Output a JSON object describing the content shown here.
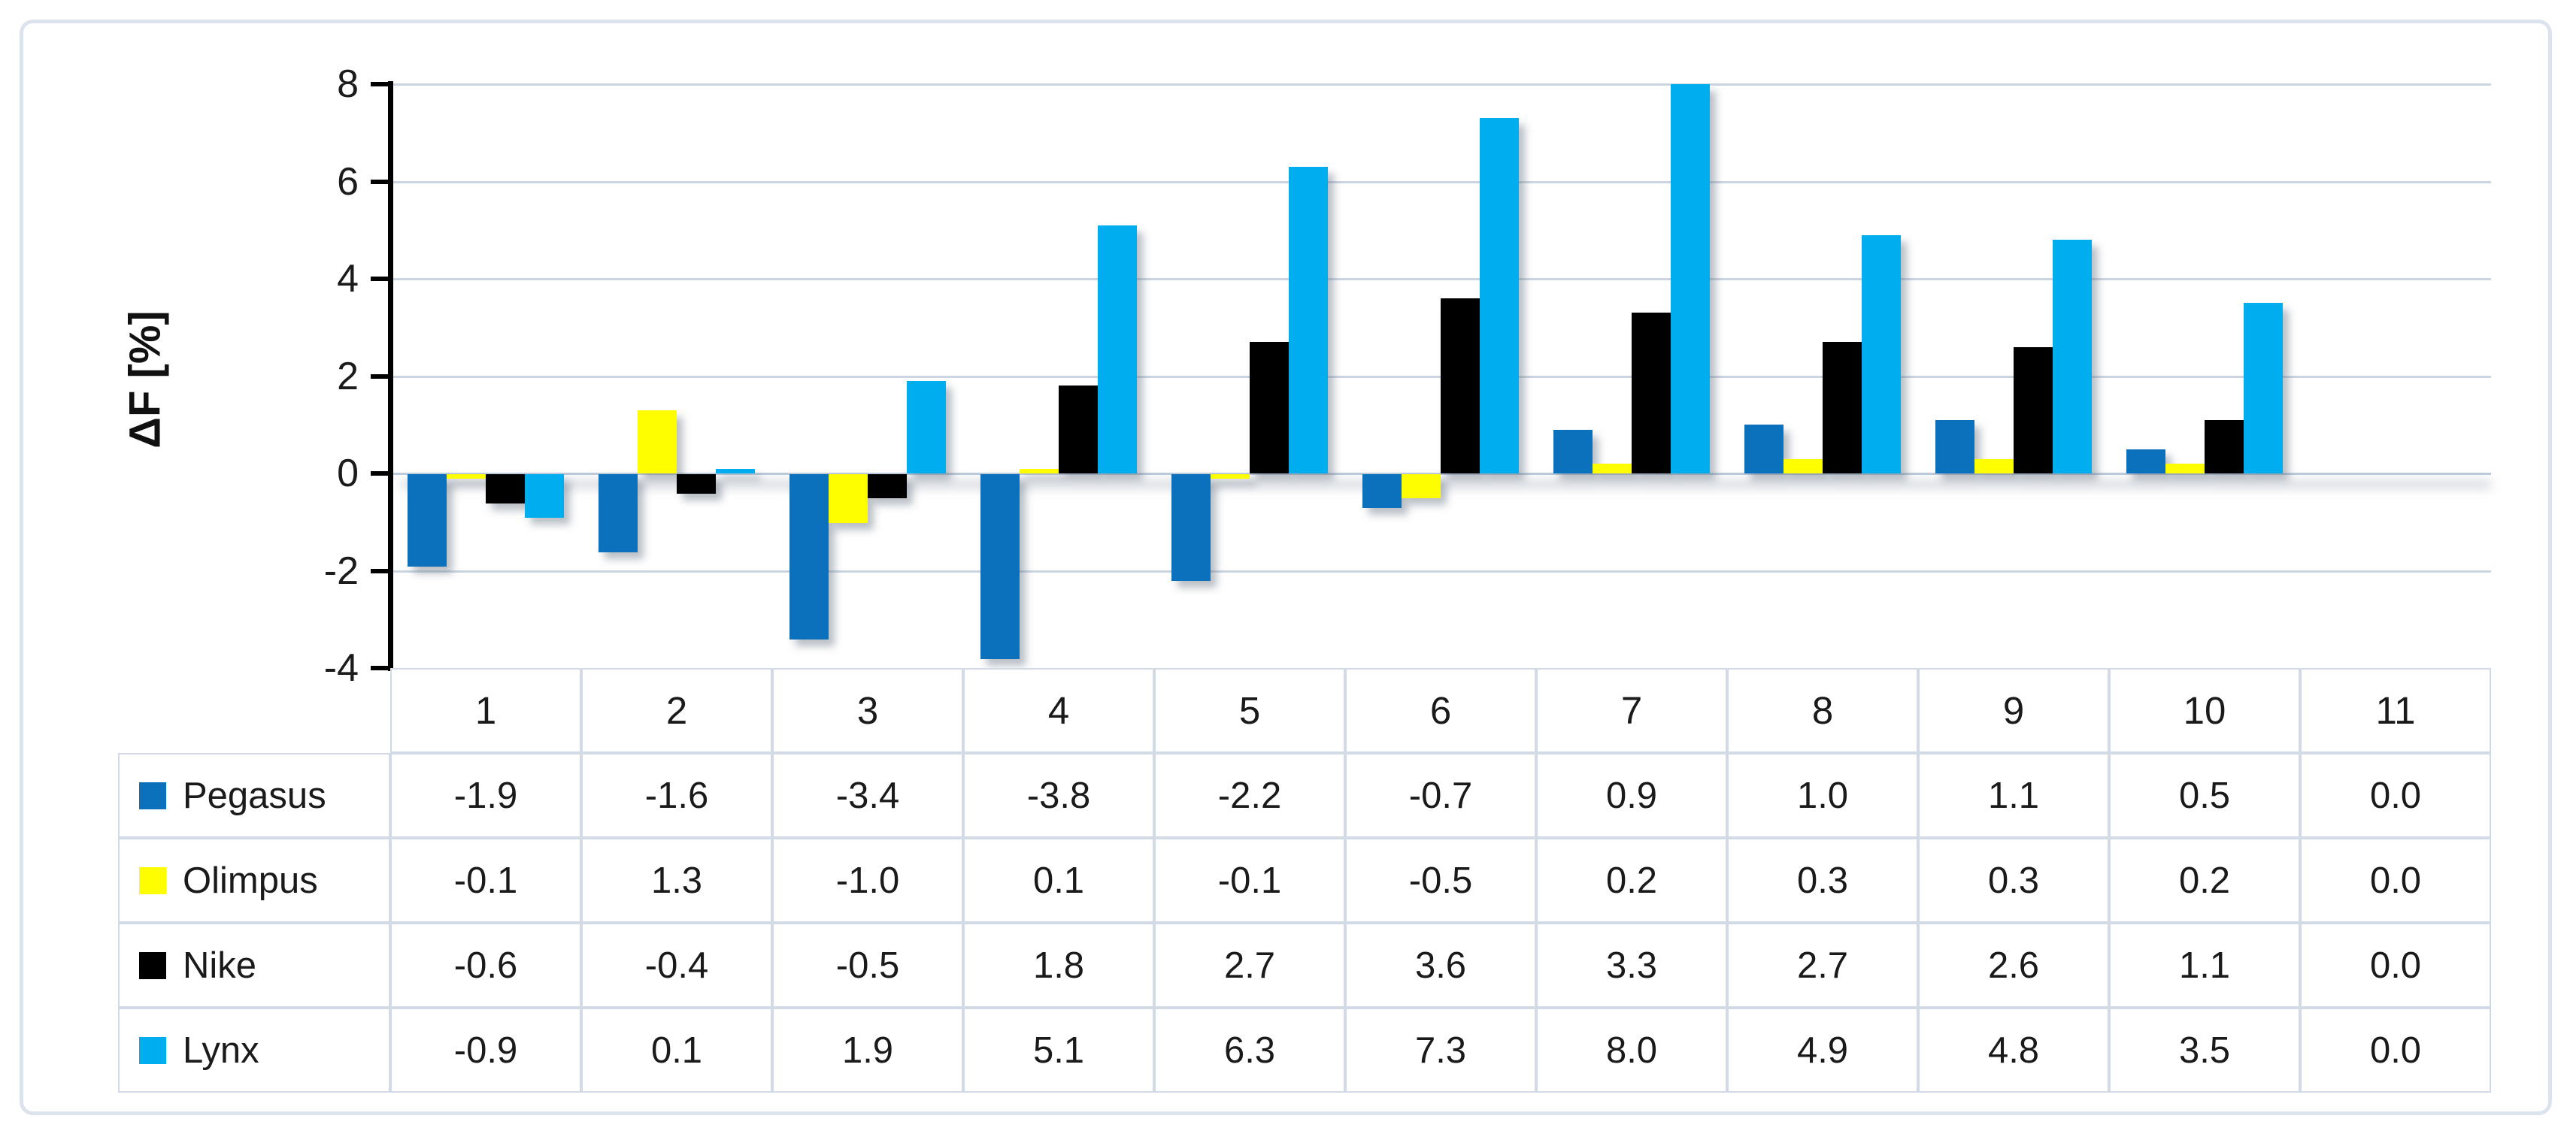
{
  "chart_data": {
    "type": "bar",
    "title": "",
    "xlabel": "",
    "ylabel": "ΔF [%]",
    "categories": [
      "1",
      "2",
      "3",
      "4",
      "5",
      "6",
      "7",
      "8",
      "9",
      "10",
      "11"
    ],
    "series": [
      {
        "name": "Pegasus",
        "color": "#0b71bd",
        "values": [
          -1.9,
          -1.6,
          -3.4,
          -3.8,
          -2.2,
          -0.7,
          0.9,
          1.0,
          1.1,
          0.5,
          0.0
        ]
      },
      {
        "name": "Olimpus",
        "color": "#fefe00",
        "values": [
          -0.1,
          1.3,
          -1.0,
          0.1,
          -0.1,
          -0.5,
          0.2,
          0.3,
          0.3,
          0.2,
          0.0
        ]
      },
      {
        "name": "Nike",
        "color": "#000000",
        "values": [
          -0.6,
          -0.4,
          -0.5,
          1.8,
          2.7,
          3.6,
          3.3,
          2.7,
          2.6,
          1.1,
          0.0
        ]
      },
      {
        "name": "Lynx",
        "color": "#00aeef",
        "values": [
          -0.9,
          0.1,
          1.9,
          5.1,
          6.3,
          7.3,
          8.0,
          4.9,
          4.8,
          3.5,
          0.0
        ]
      }
    ],
    "ylim": [
      -4,
      8
    ],
    "yticks": [
      8,
      6,
      4,
      2,
      0,
      -2,
      -4
    ],
    "grid": true,
    "legend_position": "data-table-left-column",
    "data_table": true,
    "value_format": "one-decimal"
  },
  "colors": {
    "gridline": "#cbd5e2",
    "zero_line": "#bfccdc",
    "table_border": "#d2dae6",
    "outer_border": "#dce3ed",
    "text": "#1a1a1a"
  }
}
